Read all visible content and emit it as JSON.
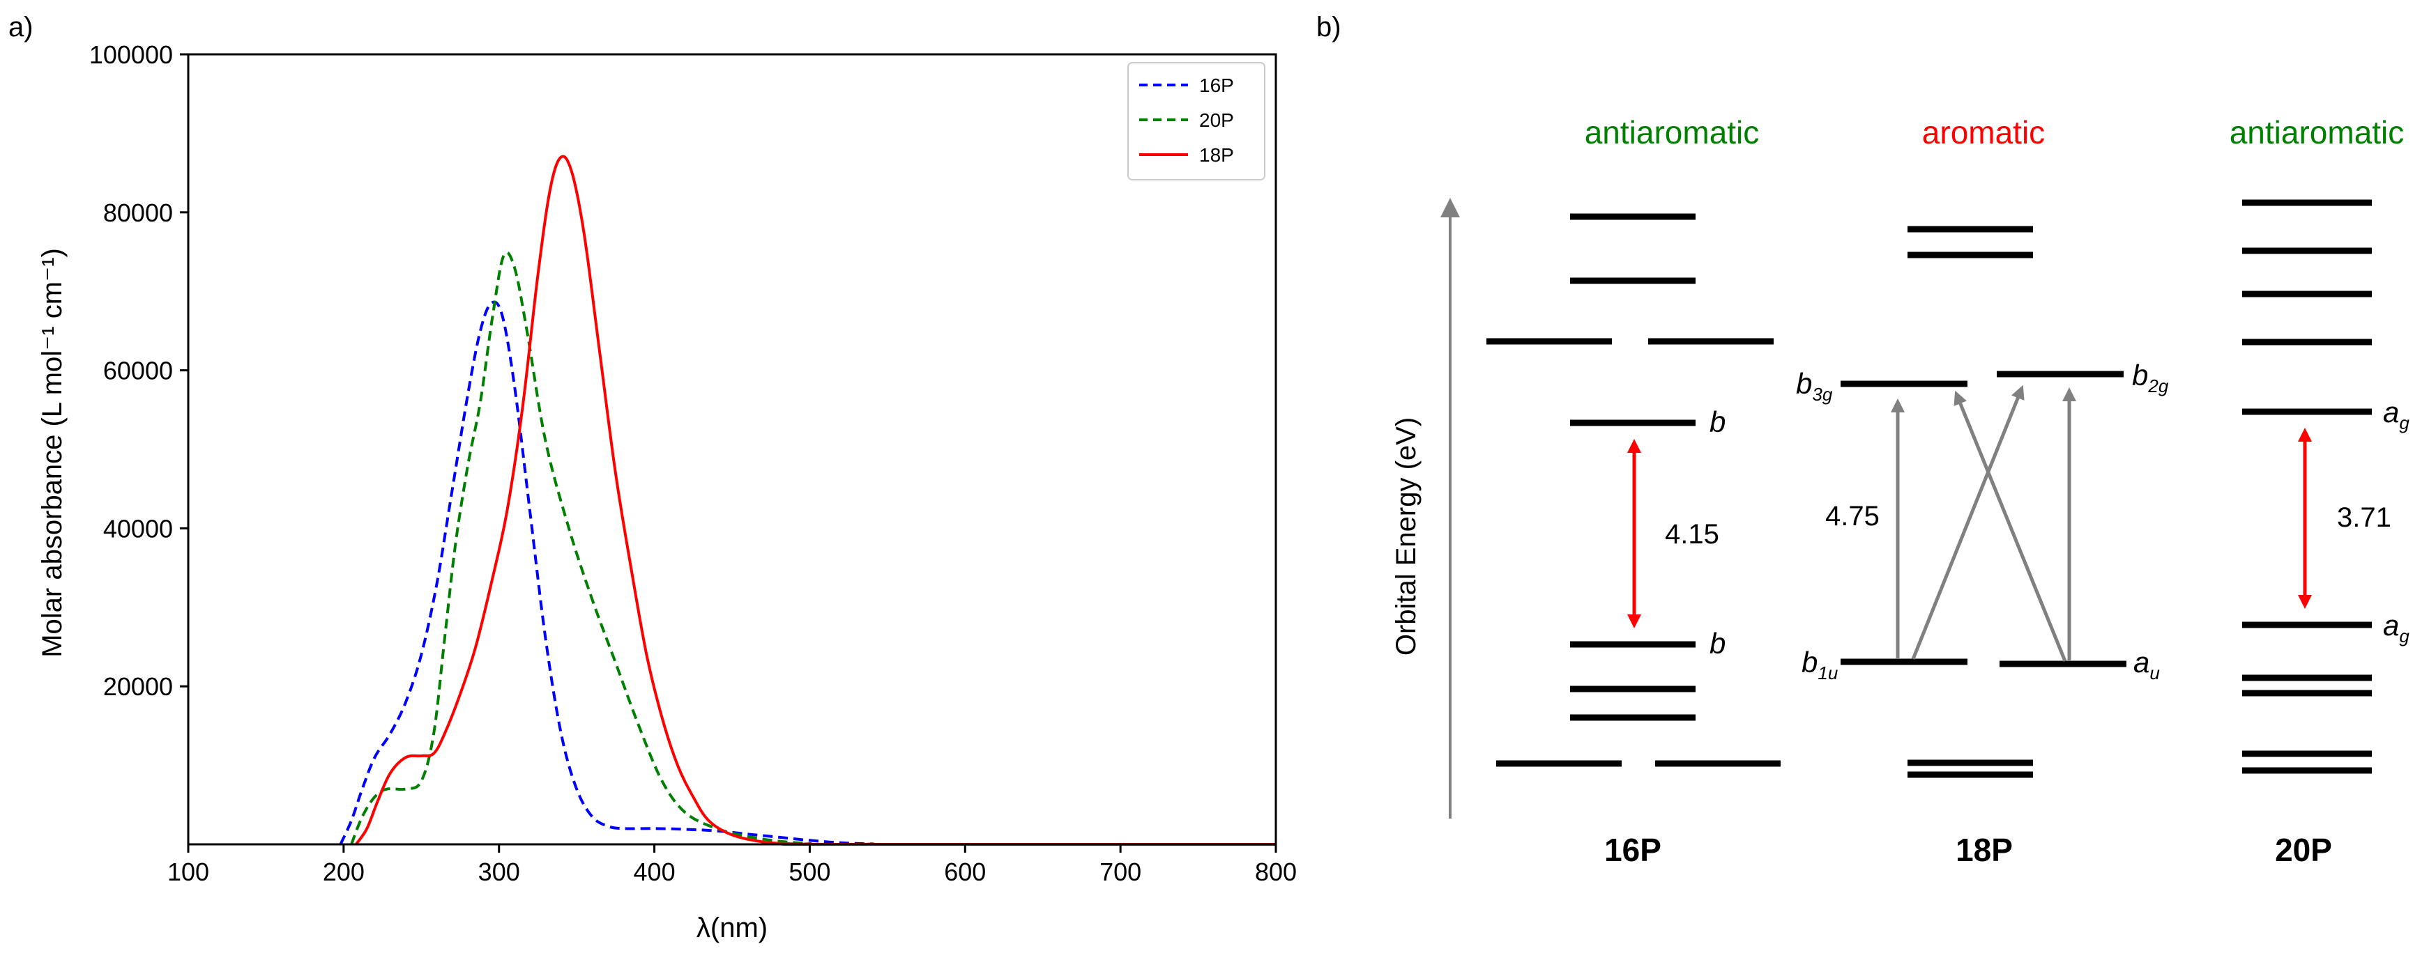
{
  "chart_data": [
    {
      "type": "line",
      "panel_label": "a)",
      "xlabel": "λ(nm)",
      "ylabel": "Molar absorbance (L mol⁻¹ cm⁻¹)",
      "xlim": [
        100,
        800
      ],
      "ylim": [
        0,
        100000
      ],
      "xticks": [
        "100",
        "200",
        "300",
        "400",
        "500",
        "600",
        "700",
        "800"
      ],
      "yticks": [
        "20000",
        "40000",
        "60000",
        "80000",
        "100000"
      ],
      "legend_position": "top-right",
      "series": [
        {
          "name": "16P",
          "color": "#0000ff",
          "style": "dashed",
          "points": [
            [
              198,
              0
            ],
            [
              205,
              3000
            ],
            [
              212,
              7000
            ],
            [
              220,
              11000
            ],
            [
              230,
              14000
            ],
            [
              240,
              18000
            ],
            [
              250,
              24000
            ],
            [
              260,
              33000
            ],
            [
              270,
              45000
            ],
            [
              280,
              57000
            ],
            [
              288,
              65000
            ],
            [
              295,
              68500
            ],
            [
              302,
              67000
            ],
            [
              310,
              58000
            ],
            [
              320,
              42000
            ],
            [
              330,
              26000
            ],
            [
              340,
              14000
            ],
            [
              350,
              7000
            ],
            [
              360,
              3500
            ],
            [
              370,
              2300
            ],
            [
              380,
              2000
            ],
            [
              400,
              2000
            ],
            [
              420,
              1900
            ],
            [
              440,
              1700
            ],
            [
              460,
              1300
            ],
            [
              480,
              900
            ],
            [
              500,
              500
            ],
            [
              520,
              200
            ],
            [
              540,
              50
            ],
            [
              560,
              0
            ],
            [
              800,
              0
            ]
          ]
        },
        {
          "name": "20P",
          "color": "#008000",
          "style": "dashed",
          "points": [
            [
              205,
              0
            ],
            [
              212,
              3500
            ],
            [
              220,
              6000
            ],
            [
              228,
              7000
            ],
            [
              240,
              7000
            ],
            [
              250,
              8000
            ],
            [
              258,
              14000
            ],
            [
              265,
              26000
            ],
            [
              272,
              38000
            ],
            [
              280,
              48000
            ],
            [
              288,
              56000
            ],
            [
              296,
              67000
            ],
            [
              303,
              74500
            ],
            [
              310,
              73000
            ],
            [
              318,
              65000
            ],
            [
              330,
              51000
            ],
            [
              345,
              40000
            ],
            [
              360,
              31000
            ],
            [
              375,
              23000
            ],
            [
              390,
              15000
            ],
            [
              405,
              8000
            ],
            [
              420,
              4000
            ],
            [
              440,
              2000
            ],
            [
              460,
              1000
            ],
            [
              480,
              400
            ],
            [
              500,
              100
            ],
            [
              520,
              0
            ],
            [
              800,
              0
            ]
          ]
        },
        {
          "name": "18P",
          "color": "#ff0000",
          "style": "solid",
          "points": [
            [
              208,
              0
            ],
            [
              215,
              2000
            ],
            [
              222,
              5500
            ],
            [
              230,
              9000
            ],
            [
              240,
              11000
            ],
            [
              250,
              11200
            ],
            [
              258,
              11500
            ],
            [
              265,
              14000
            ],
            [
              275,
              19000
            ],
            [
              285,
              25000
            ],
            [
              295,
              33000
            ],
            [
              305,
              42000
            ],
            [
              315,
              55000
            ],
            [
              325,
              72000
            ],
            [
              333,
              83000
            ],
            [
              340,
              87000
            ],
            [
              347,
              85000
            ],
            [
              355,
              77000
            ],
            [
              365,
              62000
            ],
            [
              375,
              47000
            ],
            [
              385,
              35000
            ],
            [
              395,
              24000
            ],
            [
              405,
              16000
            ],
            [
              415,
              10000
            ],
            [
              425,
              6000
            ],
            [
              435,
              3000
            ],
            [
              450,
              1200
            ],
            [
              470,
              300
            ],
            [
              490,
              50
            ],
            [
              510,
              0
            ],
            [
              800,
              0
            ]
          ]
        }
      ]
    },
    {
      "type": "diagram",
      "panel_label": "b)",
      "axis_label": "Orbital Energy (eV)",
      "molecules": [
        {
          "name": "16P",
          "title": "antiaromatic",
          "title_color": "#008000",
          "gap_label": "4.15",
          "gap_color": "#ff0000",
          "upper_label": "b",
          "lower_label": "b"
        },
        {
          "name": "18P",
          "title": "aromatic",
          "title_color": "#ff0000",
          "gap_label": "4.75",
          "arrow_color": "#808080",
          "upper_left_label": "b",
          "upper_left_sub": "3g",
          "upper_right_label": "b",
          "upper_right_sub": "2g",
          "lower_left_label": "b",
          "lower_left_sub": "1u",
          "lower_right_label": "a",
          "lower_right_sub": "u"
        },
        {
          "name": "20P",
          "title": "antiaromatic",
          "title_color": "#008000",
          "gap_label": "3.71",
          "gap_color": "#ff0000",
          "upper_label": "a",
          "upper_sub": "g",
          "lower_label": "a",
          "lower_sub": "g"
        }
      ]
    }
  ]
}
